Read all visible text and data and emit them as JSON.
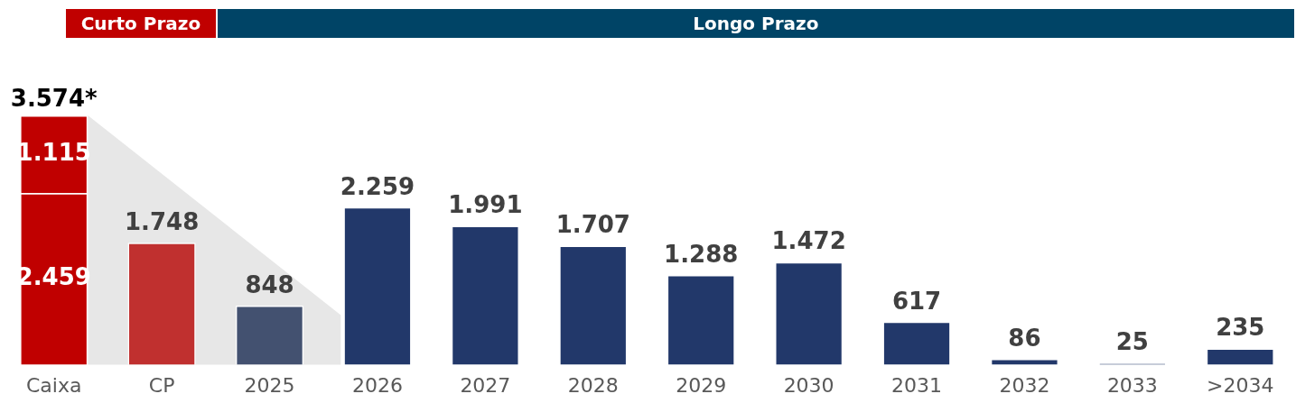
{
  "chart_data": {
    "type": "bar",
    "stacked": true,
    "legend": false,
    "grid": false,
    "categories": [
      "Caixa",
      "CP",
      "2025",
      "2026",
      "2027",
      "2028",
      "2029",
      "2030",
      "2031",
      "2032",
      "2033",
      ">2034"
    ],
    "annotations": [
      "Curto Prazo",
      "Longo Prazo"
    ],
    "series": [
      {
        "colors": [
          "#c00000",
          "#c0302f",
          "#435170",
          "#22386a",
          "#22386a",
          "#22386a",
          "#22386a",
          "#22386a",
          "#22386a",
          "#22386a",
          "#22386a",
          "#22386a"
        ],
        "values": [
          2459,
          1748,
          848,
          2259,
          1991,
          1707,
          1288,
          1472,
          617,
          86,
          25,
          235
        ],
        "value_labels": [
          "2.459",
          "1.748",
          "848",
          "2.259",
          "1.991",
          "1.707",
          "1.288",
          "1.472",
          "617",
          "86",
          "25",
          "235"
        ]
      },
      {
        "color": "#c00000",
        "values": [
          1115,
          null,
          null,
          null,
          null,
          null,
          null,
          null,
          null,
          null,
          null,
          null
        ],
        "value_labels": [
          "1.115",
          null,
          null,
          null,
          null,
          null,
          null,
          null,
          null,
          null,
          null,
          null
        ]
      }
    ],
    "totals": [
      "3.574*",
      null,
      null,
      null,
      null,
      null,
      null,
      null,
      null,
      null,
      null,
      null
    ]
  }
}
